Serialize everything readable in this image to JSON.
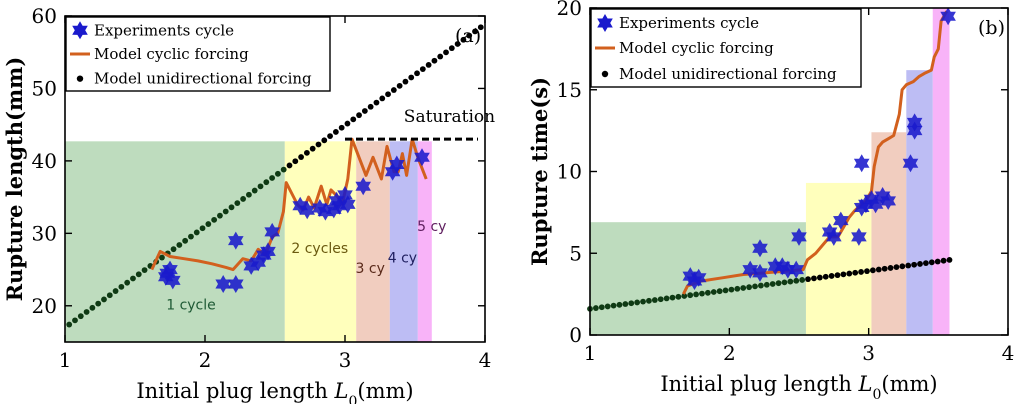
{
  "colors": {
    "star": "#1a1acc",
    "model_cyclic": "#d2601e",
    "model_unidirectional": "#000000",
    "region_1": "#b3d6b3",
    "region_2": "#ffffb0",
    "region_3": "#efc4b4",
    "region_4": "#b2b2f2",
    "region_5": "#f7a6f7"
  },
  "legend": {
    "experiments": "Experiments cycle",
    "model_cyclic": "Model cyclic forcing",
    "model_unidirectional": "Model unidirectional forcing"
  },
  "chart_data": [
    {
      "type": "scatter",
      "panel_label": "(a)",
      "xlabel": "Initial plug length L0(mm)",
      "xlabel_text": "Initial plug length ",
      "xlabel_var": "L",
      "xlabel_sub": "0",
      "xlabel_unit": "(mm)",
      "ylabel": "Rupture length(mm)",
      "xlim": [
        1,
        4
      ],
      "ylim": [
        15,
        60
      ],
      "xticks": [
        1,
        2,
        3,
        4
      ],
      "yticks": [
        20,
        30,
        40,
        50,
        60
      ],
      "legend_position": "top-left",
      "regions": [
        {
          "x0": 1.0,
          "x1": 2.57,
          "y1": 42.7,
          "label": "1 cycle",
          "label_x": 1.9,
          "label_y": 19.5,
          "label_color": "#1f5a35"
        },
        {
          "x0": 2.57,
          "x1": 3.08,
          "y1": 42.7,
          "label": "2 cycles",
          "label_x": 2.82,
          "label_y": 27.3,
          "label_color": "#6b5a10"
        },
        {
          "x0": 3.08,
          "x1": 3.32,
          "y1": 42.7,
          "label": "3 cy",
          "label_x": 3.18,
          "label_y": 24.5,
          "label_color": "#5a2a1a"
        },
        {
          "x0": 3.32,
          "x1": 3.52,
          "y1": 42.7,
          "label": "4 cy",
          "label_x": 3.41,
          "label_y": 26.0,
          "label_color": "#202060"
        },
        {
          "x0": 3.52,
          "x1": 3.62,
          "y1": 42.7,
          "label": "5 cy",
          "label_x": 3.62,
          "label_y": 30.3,
          "label_color": "#602060"
        }
      ],
      "annotation": {
        "text": "Saturation",
        "x": 3.42,
        "y": 45.4,
        "line_x0": 3.0,
        "line_x1": 3.95,
        "line_y": 43.0
      },
      "series": [
        {
          "name": "Experiments cycle",
          "kind": "stars",
          "points": [
            [
              1.72,
              24.0
            ],
            [
              1.75,
              25.0
            ],
            [
              1.77,
              23.5
            ],
            [
              1.73,
              24.5
            ],
            [
              2.13,
              23.0
            ],
            [
              2.22,
              23.0
            ],
            [
              2.22,
              29.0
            ],
            [
              2.33,
              25.5
            ],
            [
              2.38,
              26.0
            ],
            [
              2.42,
              27.0
            ],
            [
              2.45,
              27.5
            ],
            [
              2.48,
              30.2
            ],
            [
              2.68,
              33.8
            ],
            [
              2.73,
              33.2
            ],
            [
              2.82,
              33.5
            ],
            [
              2.86,
              33.0
            ],
            [
              2.92,
              33.3
            ],
            [
              2.94,
              34.5
            ],
            [
              2.96,
              33.8
            ],
            [
              3.0,
              35.3
            ],
            [
              3.02,
              34.0
            ],
            [
              3.13,
              36.5
            ],
            [
              3.34,
              38.5
            ],
            [
              3.37,
              39.5
            ],
            [
              3.55,
              40.5
            ]
          ]
        },
        {
          "name": "Model cyclic forcing",
          "kind": "line",
          "points": [
            [
              1.62,
              25.0
            ],
            [
              1.68,
              27.5
            ],
            [
              1.75,
              26.8
            ],
            [
              1.85,
              26.5
            ],
            [
              1.95,
              26.2
            ],
            [
              2.05,
              25.8
            ],
            [
              2.15,
              25.3
            ],
            [
              2.2,
              25.0
            ],
            [
              2.27,
              26.5
            ],
            [
              2.33,
              26.2
            ],
            [
              2.38,
              27.8
            ],
            [
              2.43,
              27.0
            ],
            [
              2.48,
              29.5
            ],
            [
              2.52,
              30.0
            ],
            [
              2.56,
              33.0
            ],
            [
              2.58,
              37.0
            ],
            [
              2.62,
              35.5
            ],
            [
              2.66,
              34.0
            ],
            [
              2.7,
              33.2
            ],
            [
              2.74,
              35.0
            ],
            [
              2.78,
              33.5
            ],
            [
              2.83,
              36.5
            ],
            [
              2.87,
              34.0
            ],
            [
              2.9,
              36.0
            ],
            [
              2.95,
              35.0
            ],
            [
              2.98,
              34.0
            ],
            [
              3.02,
              37.5
            ],
            [
              3.05,
              43.0
            ],
            [
              3.1,
              40.5
            ],
            [
              3.15,
              38.0
            ],
            [
              3.2,
              40.5
            ],
            [
              3.26,
              37.5
            ],
            [
              3.3,
              42.0
            ],
            [
              3.35,
              38.5
            ],
            [
              3.38,
              38.5
            ],
            [
              3.41,
              41.0
            ],
            [
              3.44,
              38.0
            ],
            [
              3.48,
              43.0
            ],
            [
              3.52,
              40.5
            ],
            [
              3.56,
              38.5
            ],
            [
              3.58,
              37.5
            ]
          ]
        },
        {
          "name": "Model unidirectional forcing",
          "kind": "dots",
          "x_start": 1.03,
          "x_end": 3.97,
          "slope": 13.96,
          "intercept": 3.03,
          "count": 72
        }
      ]
    },
    {
      "type": "scatter",
      "panel_label": "(b)",
      "xlabel": "Initial plug length L0(mm)",
      "xlabel_text": "Initial plug length ",
      "xlabel_var": "L",
      "xlabel_sub": "0",
      "xlabel_unit": "(mm)",
      "ylabel": "Rupture time(s)",
      "xlim": [
        1,
        4
      ],
      "ylim": [
        0,
        20
      ],
      "xticks": [
        1,
        2,
        3,
        4
      ],
      "yticks": [
        0,
        5,
        10,
        15,
        20
      ],
      "legend_position": "top-left",
      "regions": [
        {
          "x0": 1.0,
          "x1": 2.55,
          "y1": 6.9
        },
        {
          "x0": 2.55,
          "x1": 3.02,
          "y1": 9.3
        },
        {
          "x0": 3.02,
          "x1": 3.27,
          "y1": 12.4
        },
        {
          "x0": 3.27,
          "x1": 3.46,
          "y1": 16.2
        },
        {
          "x0": 3.46,
          "x1": 3.58,
          "y1": 20.0
        }
      ],
      "series": [
        {
          "name": "Experiments cycle",
          "kind": "stars",
          "points": [
            [
              1.72,
              3.6
            ],
            [
              1.78,
              3.5
            ],
            [
              1.75,
              3.3
            ],
            [
              2.15,
              4.0
            ],
            [
              2.22,
              5.3
            ],
            [
              2.22,
              3.8
            ],
            [
              2.33,
              4.2
            ],
            [
              2.38,
              4.2
            ],
            [
              2.42,
              4.0
            ],
            [
              2.48,
              4.0
            ],
            [
              2.5,
              6.0
            ],
            [
              2.72,
              6.3
            ],
            [
              2.75,
              6.0
            ],
            [
              2.8,
              7.0
            ],
            [
              2.95,
              10.5
            ],
            [
              2.93,
              6.0
            ],
            [
              2.95,
              7.8
            ],
            [
              2.98,
              8.0
            ],
            [
              3.02,
              8.3
            ],
            [
              3.05,
              8.0
            ],
            [
              3.1,
              8.5
            ],
            [
              3.14,
              8.2
            ],
            [
              3.33,
              12.5
            ],
            [
              3.33,
              13.0
            ],
            [
              3.3,
              10.5
            ],
            [
              3.57,
              19.5
            ]
          ]
        },
        {
          "name": "Model cyclic forcing",
          "kind": "line",
          "points": [
            [
              1.67,
              2.5
            ],
            [
              1.7,
              3.0
            ],
            [
              1.8,
              3.3
            ],
            [
              1.95,
              3.5
            ],
            [
              2.1,
              3.7
            ],
            [
              2.25,
              3.8
            ],
            [
              2.4,
              3.9
            ],
            [
              2.53,
              4.0
            ],
            [
              2.56,
              4.6
            ],
            [
              2.62,
              5.0
            ],
            [
              2.68,
              5.6
            ],
            [
              2.72,
              6.0
            ],
            [
              2.78,
              6.0
            ],
            [
              2.82,
              6.6
            ],
            [
              2.86,
              7.2
            ],
            [
              2.9,
              7.6
            ],
            [
              2.95,
              8.0
            ],
            [
              2.98,
              8.2
            ],
            [
              3.02,
              8.8
            ],
            [
              3.04,
              10.3
            ],
            [
              3.07,
              11.5
            ],
            [
              3.1,
              11.8
            ],
            [
              3.14,
              12.0
            ],
            [
              3.18,
              12.2
            ],
            [
              3.22,
              13.5
            ],
            [
              3.24,
              15.0
            ],
            [
              3.27,
              15.3
            ],
            [
              3.32,
              15.5
            ],
            [
              3.36,
              15.8
            ],
            [
              3.4,
              16.0
            ],
            [
              3.45,
              16.2
            ],
            [
              3.47,
              17.0
            ],
            [
              3.5,
              17.5
            ],
            [
              3.52,
              19.2
            ],
            [
              3.56,
              19.8
            ]
          ]
        },
        {
          "name": "Model unidirectional forcing",
          "kind": "dots",
          "x_start": 1.0,
          "x_end": 3.58,
          "slope": 1.16,
          "intercept": 0.44,
          "count": 62
        }
      ]
    }
  ]
}
